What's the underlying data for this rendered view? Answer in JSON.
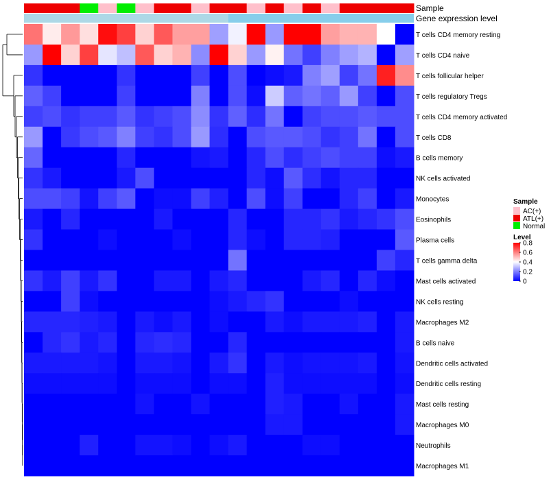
{
  "chart_data": {
    "type": "heatmap",
    "title": "",
    "annotation_labels": {
      "sample": "Sample",
      "level": "Gene expression level"
    },
    "samples": [
      "ATL(+)",
      "ATL(+)",
      "ATL(+)",
      "Normal",
      "AC(+)",
      "Normal",
      "AC(+)",
      "ATL(+)",
      "ATL(+)",
      "AC(+)",
      "ATL(+)",
      "ATL(+)",
      "AC(+)",
      "ATL(+)",
      "AC(+)",
      "ATL(+)",
      "AC(+)",
      "ATL(+)",
      "ATL(+)",
      "ATL(+)",
      "ATL(+)"
    ],
    "level_bar": {
      "split_index": 11
    },
    "rows": [
      "T cells CD4 memory resting",
      "T cells CD4 naive",
      "T cells follicular helper",
      "T cells regulatory  Tregs",
      "T cells CD4 memory activated",
      "T cells CD8",
      "B cells memory",
      "NK cells activated",
      "Monocytes",
      "Eosinophils",
      "Plasma cells",
      "T cells gamma delta",
      "Mast cells activated",
      "NK cells resting",
      "Macrophages M2",
      "B cells naive",
      "Dendritic cells activated",
      "Dendritic cells resting",
      "Mast cells resting",
      "Macrophages M0",
      "Neutrophils",
      "Macrophages M1"
    ],
    "values": [
      [
        0.62,
        0.43,
        0.56,
        0.45,
        0.78,
        0.7,
        0.47,
        0.66,
        0.55,
        0.55,
        0.25,
        0.38,
        0.8,
        0.24,
        0.8,
        0.8,
        0.55,
        0.52,
        0.52,
        0.4,
        0.0
      ],
      [
        0.24,
        0.8,
        0.47,
        0.7,
        0.36,
        0.3,
        0.66,
        0.47,
        0.52,
        0.22,
        0.8,
        0.47,
        0.24,
        0.42,
        0.18,
        0.1,
        0.2,
        0.25,
        0.28,
        0.0,
        0.25
      ],
      [
        0.08,
        0.0,
        0.0,
        0.0,
        0.0,
        0.08,
        0.0,
        0.0,
        0.0,
        0.1,
        0.0,
        0.12,
        0.0,
        0.02,
        0.04,
        0.2,
        0.25,
        0.1,
        0.18,
        0.75,
        0.58
      ],
      [
        0.15,
        0.1,
        0.0,
        0.0,
        0.0,
        0.1,
        0.0,
        0.0,
        0.0,
        0.2,
        0.0,
        0.12,
        0.02,
        0.32,
        0.15,
        0.18,
        0.15,
        0.24,
        0.1,
        0.0,
        0.12
      ],
      [
        0.1,
        0.12,
        0.08,
        0.1,
        0.1,
        0.14,
        0.08,
        0.1,
        0.12,
        0.22,
        0.08,
        0.15,
        0.07,
        0.18,
        0.0,
        0.1,
        0.12,
        0.12,
        0.14,
        0.12,
        0.12
      ],
      [
        0.24,
        0.0,
        0.09,
        0.12,
        0.14,
        0.2,
        0.1,
        0.08,
        0.12,
        0.24,
        0.07,
        0.0,
        0.12,
        0.14,
        0.14,
        0.12,
        0.08,
        0.1,
        0.18,
        0.0,
        0.12
      ],
      [
        0.16,
        0.0,
        0.0,
        0.0,
        0.0,
        0.06,
        0.0,
        0.0,
        0.0,
        0.03,
        0.04,
        0.0,
        0.06,
        0.12,
        0.07,
        0.1,
        0.12,
        0.1,
        0.1,
        0.02,
        0.04
      ],
      [
        0.08,
        0.04,
        0.0,
        0.0,
        0.0,
        0.04,
        0.12,
        0.0,
        0.0,
        0.0,
        0.0,
        0.0,
        0.06,
        0.02,
        0.14,
        0.07,
        0.03,
        0.06,
        0.06,
        0.0,
        0.0
      ],
      [
        0.12,
        0.12,
        0.1,
        0.03,
        0.1,
        0.14,
        0.0,
        0.02,
        0.02,
        0.1,
        0.05,
        0.0,
        0.12,
        0.02,
        0.1,
        0.0,
        0.0,
        0.06,
        0.1,
        0.0,
        0.04
      ],
      [
        0.04,
        0.0,
        0.06,
        0.0,
        0.0,
        0.0,
        0.0,
        0.04,
        0.0,
        0.0,
        0.0,
        0.06,
        0.0,
        0.0,
        0.06,
        0.06,
        0.08,
        0.04,
        0.06,
        0.08,
        0.12
      ],
      [
        0.08,
        0.0,
        0.0,
        0.0,
        0.02,
        0.0,
        0.0,
        0.0,
        0.02,
        0.0,
        0.0,
        0.06,
        0.02,
        0.0,
        0.06,
        0.06,
        0.05,
        0.0,
        0.0,
        0.0,
        0.14
      ],
      [
        0.0,
        0.0,
        0.0,
        0.0,
        0.0,
        0.0,
        0.0,
        0.0,
        0.0,
        0.0,
        0.0,
        0.18,
        0.0,
        0.0,
        0.0,
        0.0,
        0.0,
        0.0,
        0.0,
        0.1,
        0.06
      ],
      [
        0.08,
        0.04,
        0.1,
        0.04,
        0.08,
        0.0,
        0.0,
        0.04,
        0.04,
        0.0,
        0.04,
        0.06,
        0.0,
        0.0,
        0.0,
        0.04,
        0.06,
        0.0,
        0.06,
        0.02,
        0.0
      ],
      [
        0.0,
        0.0,
        0.1,
        0.02,
        0.0,
        0.0,
        0.0,
        0.0,
        0.0,
        0.0,
        0.02,
        0.04,
        0.06,
        0.08,
        0.0,
        0.0,
        0.0,
        0.02,
        0.0,
        0.0,
        0.0
      ],
      [
        0.06,
        0.06,
        0.06,
        0.05,
        0.04,
        0.0,
        0.04,
        0.02,
        0.04,
        0.0,
        0.02,
        0.0,
        0.0,
        0.04,
        0.02,
        0.04,
        0.04,
        0.04,
        0.05,
        0.0,
        0.04
      ],
      [
        0.0,
        0.06,
        0.08,
        0.04,
        0.06,
        0.0,
        0.06,
        0.07,
        0.06,
        0.0,
        0.0,
        0.06,
        0.0,
        0.0,
        0.0,
        0.0,
        0.0,
        0.0,
        0.0,
        0.0,
        0.04
      ],
      [
        0.04,
        0.04,
        0.04,
        0.04,
        0.03,
        0.0,
        0.04,
        0.04,
        0.03,
        0.0,
        0.04,
        0.08,
        0.0,
        0.04,
        0.02,
        0.03,
        0.03,
        0.03,
        0.04,
        0.0,
        0.03
      ],
      [
        0.02,
        0.02,
        0.02,
        0.02,
        0.02,
        0.0,
        0.02,
        0.02,
        0.02,
        0.0,
        0.02,
        0.02,
        0.0,
        0.05,
        0.02,
        0.02,
        0.02,
        0.02,
        0.02,
        0.0,
        0.02
      ],
      [
        0.0,
        0.0,
        0.0,
        0.0,
        0.0,
        0.0,
        0.03,
        0.0,
        0.0,
        0.03,
        0.0,
        0.0,
        0.0,
        0.05,
        0.04,
        0.0,
        0.0,
        0.03,
        0.0,
        0.0,
        0.04
      ],
      [
        0.0,
        0.0,
        0.0,
        0.0,
        0.0,
        0.0,
        0.0,
        0.0,
        0.0,
        0.0,
        0.0,
        0.0,
        0.0,
        0.04,
        0.04,
        0.0,
        0.0,
        0.0,
        0.0,
        0.0,
        0.04
      ],
      [
        0.0,
        0.0,
        0.0,
        0.05,
        0.0,
        0.0,
        0.03,
        0.03,
        0.02,
        0.0,
        0.02,
        0.04,
        0.0,
        0.0,
        0.0,
        0.02,
        0.02,
        0.0,
        0.0,
        0.0,
        0.0
      ],
      [
        0.0,
        0.0,
        0.0,
        0.0,
        0.0,
        0.0,
        0.0,
        0.0,
        0.0,
        0.0,
        0.0,
        0.0,
        0.0,
        0.0,
        0.0,
        0.0,
        0.0,
        0.0,
        0.0,
        0.0,
        0.0
      ]
    ],
    "legend": {
      "sample_title": "Sample",
      "sample_entries": [
        {
          "label": "AC(+)",
          "color": "#FFC0CB"
        },
        {
          "label": "ATL(+)",
          "color": "#EE0000"
        },
        {
          "label": "Normal",
          "color": "#00EE00"
        }
      ],
      "level_title": "Level",
      "level_ticks": [
        "0.8",
        "0.6",
        "0.4",
        "0.2",
        "0"
      ],
      "level_tick_values": [
        0.8,
        0.6,
        0.4,
        0.2,
        0
      ]
    },
    "colors": {
      "low": "#0000FF",
      "mid": "#FFFFFF",
      "high": "#FF0000",
      "level_bar_left": "#ADD8E6",
      "level_bar_right": "#87CEEB"
    },
    "value_range": [
      0,
      0.8
    ]
  }
}
